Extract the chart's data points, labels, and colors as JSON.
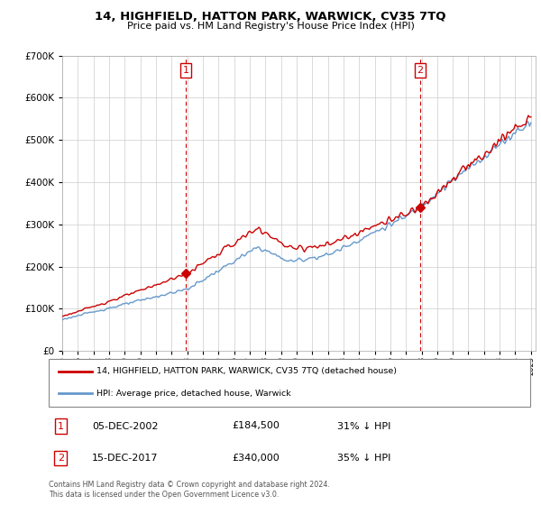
{
  "title": "14, HIGHFIELD, HATTON PARK, WARWICK, CV35 7TQ",
  "subtitle": "Price paid vs. HM Land Registry's House Price Index (HPI)",
  "sale1_date": "05-DEC-2002",
  "sale1_price": 184500,
  "sale1_pct": "31% ↓ HPI",
  "sale2_date": "15-DEC-2017",
  "sale2_price": 340000,
  "sale2_pct": "35% ↓ HPI",
  "legend_line1": "14, HIGHFIELD, HATTON PARK, WARWICK, CV35 7TQ (detached house)",
  "legend_line2": "HPI: Average price, detached house, Warwick",
  "footer": "Contains HM Land Registry data © Crown copyright and database right 2024.\nThis data is licensed under the Open Government Licence v3.0.",
  "hpi_color": "#6699cc",
  "price_color": "#cc0000",
  "fill_color": "#ddeeff",
  "ylim": [
    0,
    700000
  ],
  "yticks": [
    0,
    100000,
    200000,
    300000,
    400000,
    500000,
    600000,
    700000
  ],
  "year_start": 1995,
  "year_end": 2025,
  "bg_color": "#f0f4ff"
}
